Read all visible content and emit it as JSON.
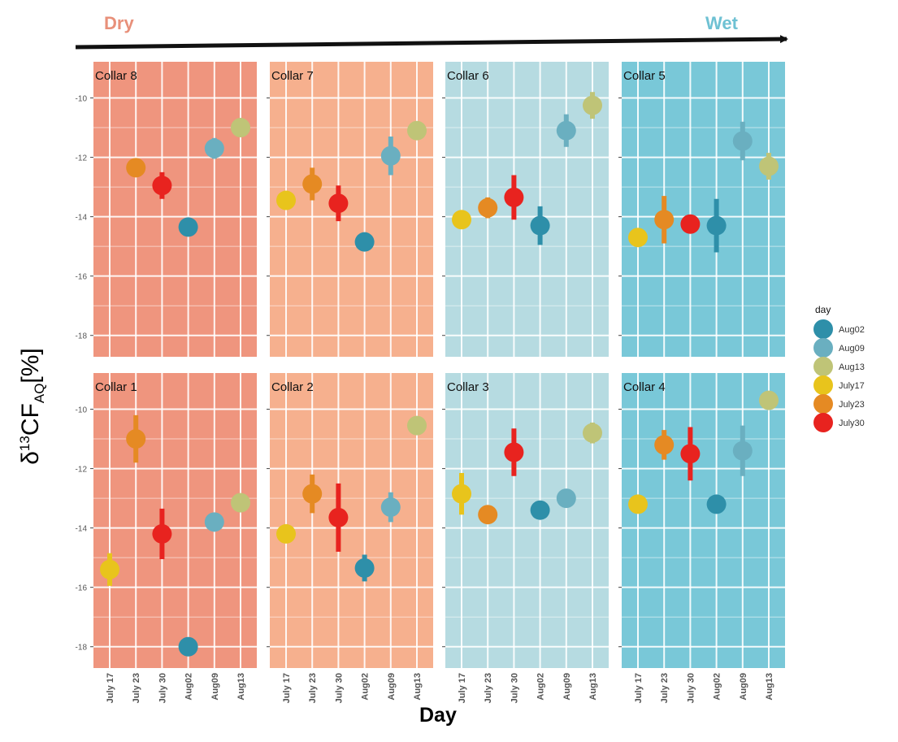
{
  "header": {
    "dry_label": "Dry",
    "wet_label": "Wet",
    "dry_color": "#E8907A",
    "wet_color": "#6EC1D3"
  },
  "xlabel": "Day",
  "ylabel": {
    "prefix": "δ",
    "sup": "13",
    "main": "CF",
    "sub": "AQ",
    "suffix": "[%]"
  },
  "legend": {
    "title": "day",
    "items": [
      {
        "label": "Aug02",
        "color": "#2E8FA9"
      },
      {
        "label": "Aug09",
        "color": "#6AAFC0"
      },
      {
        "label": "Aug13",
        "color": "#BFC477"
      },
      {
        "label": "July17",
        "color": "#E8C41C"
      },
      {
        "label": "July23",
        "color": "#E58A23"
      },
      {
        "label": "July30",
        "color": "#E8231F"
      }
    ]
  },
  "panel_colors": {
    "Collar 8": "#EF957E",
    "Collar 1": "#EF957E",
    "Collar 7": "#F6B08E",
    "Collar 2": "#F6B08E",
    "Collar 6": "#B6DBE1",
    "Collar 3": "#B6DBE1",
    "Collar 5": "#79C8D8",
    "Collar 4": "#79C8D8"
  },
  "chart_data": {
    "type": "scatter",
    "categories": [
      "July 17",
      "July 23",
      "July 30",
      "Aug02",
      "Aug09",
      "Aug13"
    ],
    "category_series": [
      "July17",
      "July23",
      "July30",
      "Aug02",
      "Aug09",
      "Aug13"
    ],
    "yticks": [
      -10,
      -12,
      -14,
      -16,
      -18
    ],
    "ylim": [
      -18.5,
      -9.0
    ],
    "grid": true,
    "legend_position": "right",
    "panels": [
      {
        "name": "Collar 8",
        "values": [
          null,
          -12.35,
          -12.95,
          -14.35,
          -11.7,
          -11.0
        ],
        "errors": [
          0,
          0.2,
          0.45,
          0.15,
          0.35,
          0.15
        ]
      },
      {
        "name": "Collar 7",
        "values": [
          -13.45,
          -12.9,
          -13.55,
          -14.85,
          -11.95,
          -11.1
        ],
        "errors": [
          0.15,
          0.55,
          0.6,
          0.15,
          0.65,
          0.25
        ]
      },
      {
        "name": "Collar 6",
        "values": [
          -14.1,
          -13.7,
          -13.35,
          -14.3,
          -11.1,
          -10.25
        ],
        "errors": [
          0.15,
          0.35,
          0.75,
          0.65,
          0.55,
          0.45
        ]
      },
      {
        "name": "Collar 5",
        "values": [
          -14.7,
          -14.1,
          -14.25,
          -14.3,
          -11.45,
          -12.3
        ],
        "errors": [
          0.15,
          0.8,
          0.15,
          0.9,
          0.65,
          0.45
        ]
      },
      {
        "name": "Collar 1",
        "values": [
          -15.4,
          -11.0,
          -14.2,
          -18.0,
          -13.8,
          -13.15
        ],
        "errors": [
          0.55,
          0.8,
          0.85,
          0.15,
          0.2,
          0.15
        ]
      },
      {
        "name": "Collar 2",
        "values": [
          -14.2,
          -12.85,
          -13.65,
          -15.35,
          -13.3,
          -10.55
        ],
        "errors": [
          0.15,
          0.65,
          1.15,
          0.45,
          0.5,
          0.15
        ]
      },
      {
        "name": "Collar 3",
        "values": [
          -12.85,
          -13.55,
          -11.45,
          -13.4,
          -13.0,
          -10.8
        ],
        "errors": [
          0.7,
          0.15,
          0.8,
          0.15,
          0.15,
          0.35
        ]
      },
      {
        "name": "Collar 4",
        "values": [
          -13.2,
          -11.2,
          -11.5,
          -13.2,
          -11.4,
          -9.7
        ],
        "errors": [
          0.15,
          0.5,
          0.9,
          0.15,
          0.85,
          0.2
        ]
      }
    ]
  }
}
